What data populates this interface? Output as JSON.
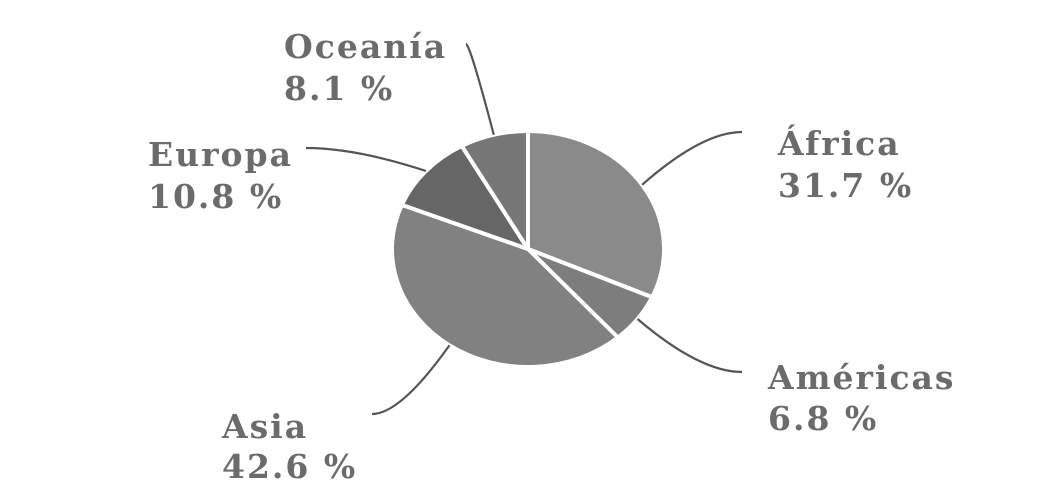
{
  "chart_data": {
    "type": "pie",
    "slices": [
      {
        "name": "África",
        "value": 31.7,
        "label": "31.7 %",
        "color": "#8a8a8a"
      },
      {
        "name": "Américas",
        "value": 6.8,
        "label": "6.8 %",
        "color": "#7d7d7d"
      },
      {
        "name": "Asia",
        "value": 42.6,
        "label": "42.6 %",
        "color": "#818181"
      },
      {
        "name": "Europa",
        "value": 10.8,
        "label": "10.8 %",
        "color": "#666666"
      },
      {
        "name": "Oceanía",
        "value": 8.1,
        "label": "8.1 %",
        "color": "#777777"
      }
    ],
    "start_angle_deg": 0,
    "direction": "clockwise",
    "slice_border_color": "#ffffff",
    "leader_line_color": "#555555",
    "label_color": "#6b6b6b"
  }
}
